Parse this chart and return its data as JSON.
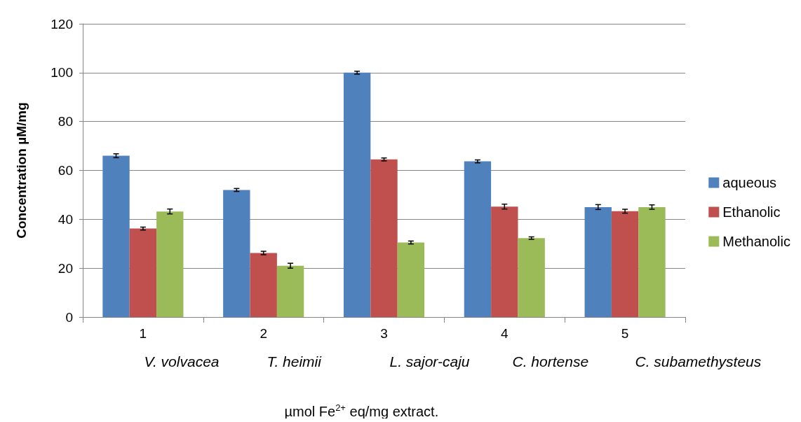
{
  "chart_data": {
    "type": "bar",
    "ylabel": "Concentration µM/mg",
    "xlabel": "µmol Fe$^{2+}$ eq/mg extract.",
    "categories": [
      "1",
      "2",
      "3",
      "4",
      "5"
    ],
    "annotations": [
      "V. volvacea",
      "T. heimii",
      "L. sajor-caju",
      "C. hortense",
      "C. subamethysteus"
    ],
    "series": [
      {
        "name": "aqueous",
        "color": "#4f81bd",
        "values": [
          66,
          52,
          100,
          63.7,
          45
        ],
        "errors": [
          0.8,
          0.6,
          0.6,
          0.6,
          1
        ]
      },
      {
        "name": "Ethanolic",
        "color": "#c0504d",
        "values": [
          36.2,
          26.2,
          64.5,
          45.2,
          43.3
        ],
        "errors": [
          0.6,
          0.7,
          0.6,
          1,
          0.8
        ]
      },
      {
        "name": "Methanolic",
        "color": "#9bbb59",
        "values": [
          43.2,
          21,
          30.5,
          32.3,
          45
        ],
        "errors": [
          1,
          1,
          0.6,
          0.5,
          0.9
        ]
      }
    ],
    "ylim": [
      0,
      120
    ],
    "yticks": [
      0,
      20,
      40,
      60,
      80,
      100,
      120
    ],
    "grid": "y",
    "legend": "right"
  }
}
